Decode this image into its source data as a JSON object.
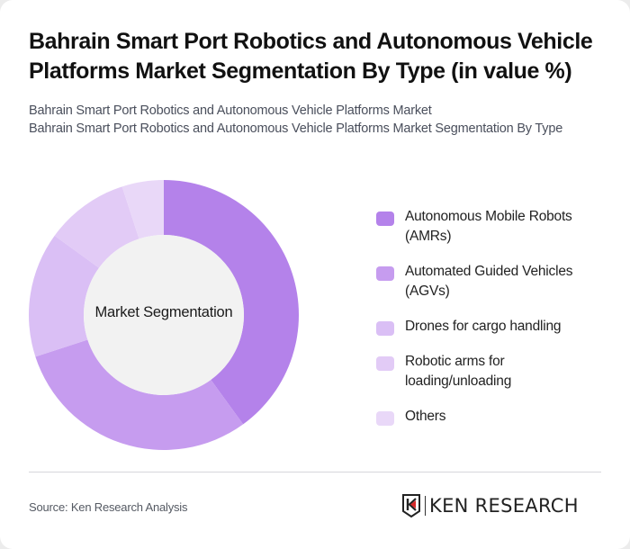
{
  "header": {
    "title": "Bahrain Smart Port Robotics and Autonomous Vehicle Platforms Market Segmentation By Type (in value %)",
    "subtitle_line1": "Bahrain Smart Port Robotics and Autonomous Vehicle Platforms Market",
    "subtitle_line2": "Bahrain Smart Port Robotics and Autonomous Vehicle Platforms Market Segmentation By Type"
  },
  "chart": {
    "center_label": "Market Segmentation"
  },
  "legend": [
    {
      "label": "Autonomous Mobile Robots (AMRs)",
      "color": "#b482ea"
    },
    {
      "label": "Automated Guided Vehicles (AGVs)",
      "color": "#c69cef"
    },
    {
      "label": "Drones for cargo handling",
      "color": "#dabff5"
    },
    {
      "label": "Robotic arms for loading/unloading",
      "color": "#e2cbf6"
    },
    {
      "label": "Others",
      "color": "#e9d8f8"
    }
  ],
  "footer": {
    "source": "Source: Ken Research Analysis",
    "logo_text": "KEN RESEARCH"
  },
  "chart_data": {
    "type": "pie",
    "variant": "donut",
    "title": "Bahrain Smart Port Robotics and Autonomous Vehicle Platforms Market Segmentation By Type (in value %)",
    "center_label": "Market Segmentation",
    "categories": [
      "Autonomous Mobile Robots (AMRs)",
      "Automated Guided Vehicles (AGVs)",
      "Drones for cargo handling",
      "Robotic arms for loading/unloading",
      "Others"
    ],
    "values": [
      40,
      30,
      15,
      10,
      5
    ],
    "colors": [
      "#b482ea",
      "#c69cef",
      "#dabff5",
      "#e2cbf6",
      "#e9d8f8"
    ],
    "unit": "%",
    "legend_position": "right"
  }
}
